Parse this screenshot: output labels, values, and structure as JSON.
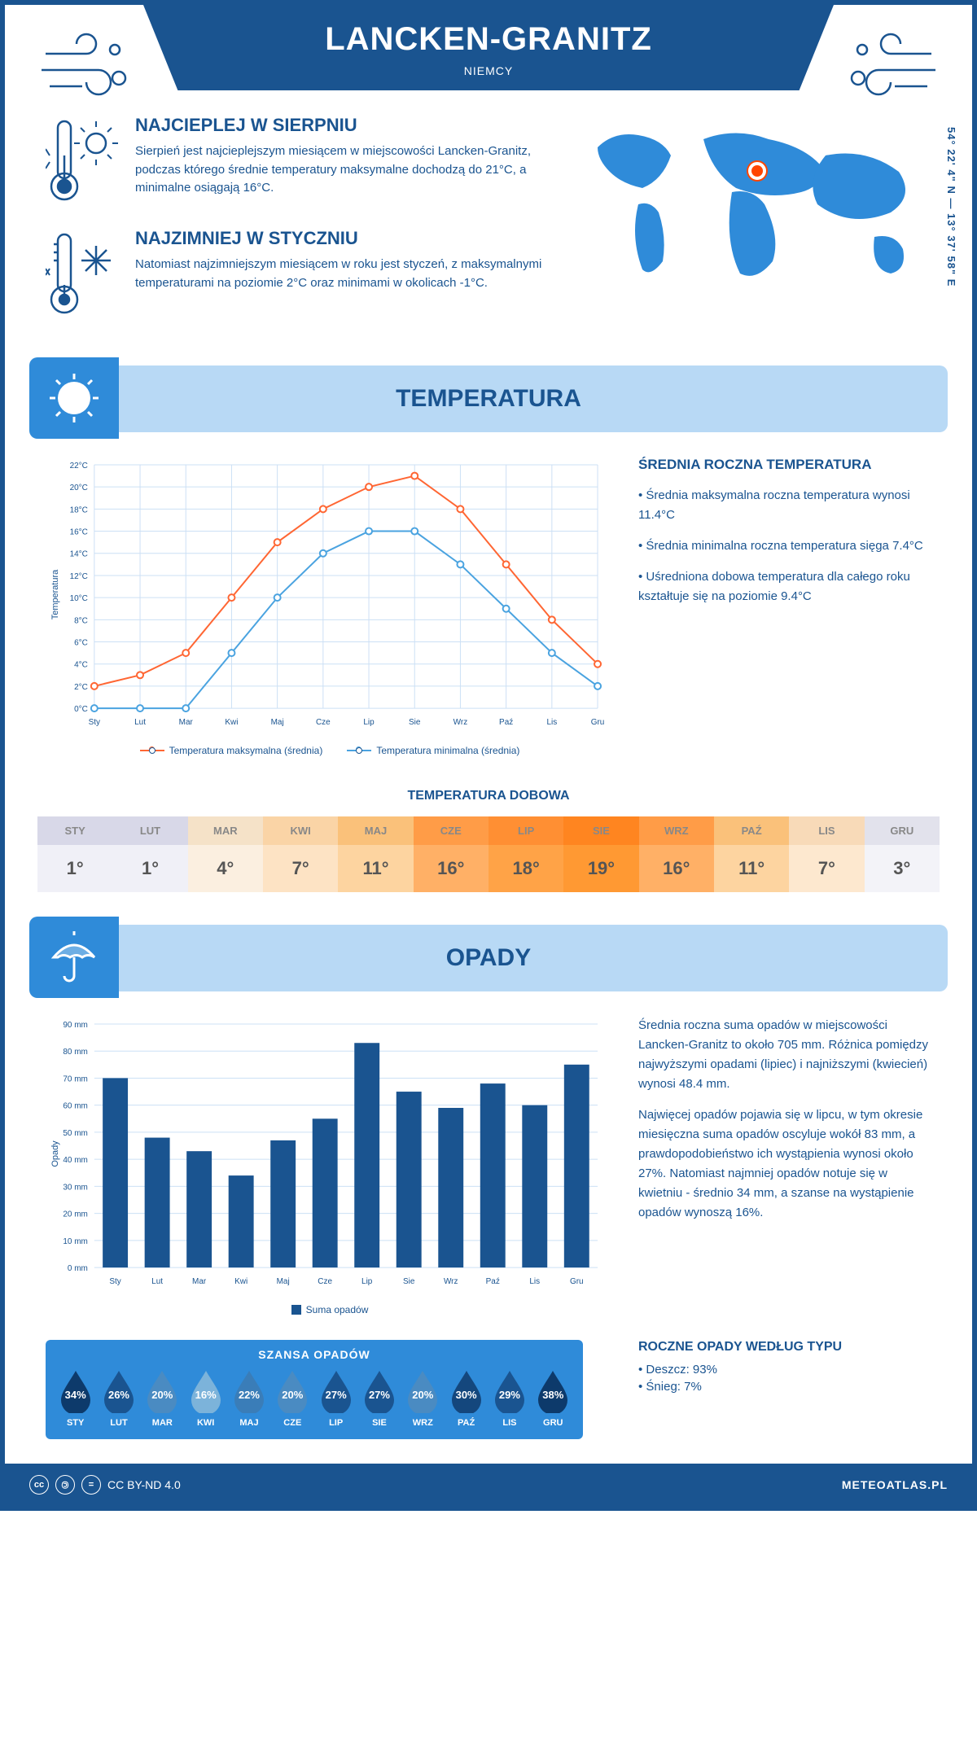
{
  "header": {
    "city": "LANCKEN-GRANITZ",
    "country": "NIEMCY",
    "coords": "54° 22' 4\" N — 13° 37' 58\" E"
  },
  "intro": {
    "warm": {
      "title": "NAJCIEPLEJ W SIERPNIU",
      "text": "Sierpień jest najcieplejszym miesiącem w miejscowości Lancken-Granitz, podczas którego średnie temperatury maksymalne dochodzą do 21°C, a minimalne osiągają 16°C."
    },
    "cold": {
      "title": "NAJZIMNIEJ W STYCZNIU",
      "text": "Natomiast najzimniejszym miesiącem w roku jest styczeń, z maksymalnymi temperaturami na poziomie 2°C oraz minimami w okolicach -1°C."
    }
  },
  "temp_section": {
    "title": "TEMPERATURA",
    "side_title": "ŚREDNIA ROCZNA TEMPERATURA",
    "bullets": [
      "• Średnia maksymalna roczna temperatura wynosi 11.4°C",
      "• Średnia minimalna roczna temperatura sięga 7.4°C",
      "• Uśredniona dobowa temperatura dla całego roku kształtuje się na poziomie 9.4°C"
    ],
    "chart": {
      "type": "line",
      "months": [
        "Sty",
        "Lut",
        "Mar",
        "Kwi",
        "Maj",
        "Cze",
        "Lip",
        "Sie",
        "Wrz",
        "Paź",
        "Lis",
        "Gru"
      ],
      "max_series": [
        2,
        3,
        5,
        10,
        15,
        18,
        20,
        21,
        18,
        13,
        8,
        4
      ],
      "min_series": [
        -1,
        0,
        0,
        5,
        10,
        14,
        16,
        16,
        13,
        9,
        5,
        2
      ],
      "max_color": "#ff6633",
      "min_color": "#4aa3e0",
      "grid_color": "#cce0f5",
      "ylim": [
        0,
        22
      ],
      "ytick_step": 2,
      "y_axis_title": "Temperatura",
      "legend_max": "Temperatura maksymalna (średnia)",
      "legend_min": "Temperatura minimalna (średnia)"
    },
    "daily": {
      "title": "TEMPERATURA DOBOWA",
      "months": [
        "STY",
        "LUT",
        "MAR",
        "KWI",
        "MAJ",
        "CZE",
        "LIP",
        "SIE",
        "WRZ",
        "PAŹ",
        "LIS",
        "GRU"
      ],
      "values": [
        "1°",
        "1°",
        "4°",
        "7°",
        "11°",
        "16°",
        "18°",
        "19°",
        "16°",
        "11°",
        "7°",
        "3°"
      ],
      "bg_colors": [
        "#f0f0f7",
        "#f0f0f7",
        "#fbefe0",
        "#fde3c4",
        "#fdd4a0",
        "#ffb066",
        "#ffa347",
        "#ff9933",
        "#ffb066",
        "#fdd4a0",
        "#fde8cf",
        "#f3f3f8"
      ],
      "header_colors": [
        "#d8d8e8",
        "#d8d8e8",
        "#f5e2c8",
        "#fad4a6",
        "#fac17a",
        "#ff9c47",
        "#ff8f33",
        "#ff8520",
        "#ff9c47",
        "#fac17a",
        "#f8dab8",
        "#e2e2ec"
      ]
    }
  },
  "precip_section": {
    "title": "OPADY",
    "side_p1": "Średnia roczna suma opadów w miejscowości Lancken-Granitz to około 705 mm. Różnica pomiędzy najwyższymi opadami (lipiec) i najniższymi (kwiecień) wynosi 48.4 mm.",
    "side_p2": "Najwięcej opadów pojawia się w lipcu, w tym okresie miesięczna suma opadów oscyluje wokół 83 mm, a prawdopodobieństwo ich wystąpienia wynosi około 27%. Natomiast najmniej opadów notuje się w kwietniu - średnio 34 mm, a szanse na wystąpienie opadów wynoszą 16%.",
    "chart": {
      "type": "bar",
      "months": [
        "Sty",
        "Lut",
        "Mar",
        "Kwi",
        "Maj",
        "Cze",
        "Lip",
        "Sie",
        "Wrz",
        "Paź",
        "Lis",
        "Gru"
      ],
      "values": [
        70,
        48,
        43,
        34,
        47,
        55,
        83,
        65,
        59,
        68,
        60,
        75
      ],
      "bar_color": "#1a5490",
      "grid_color": "#cce0f5",
      "ylim": [
        0,
        90
      ],
      "ytick_step": 10,
      "y_axis_title": "Opady",
      "legend": "Suma opadów"
    },
    "chance": {
      "title": "SZANSA OPADÓW",
      "months": [
        "STY",
        "LUT",
        "MAR",
        "KWI",
        "MAJ",
        "CZE",
        "LIP",
        "SIE",
        "WRZ",
        "PAŹ",
        "LIS",
        "GRU"
      ],
      "values": [
        "34%",
        "26%",
        "20%",
        "16%",
        "22%",
        "20%",
        "27%",
        "27%",
        "20%",
        "30%",
        "29%",
        "38%"
      ],
      "drop_colors": [
        "#0d3a6b",
        "#1a5490",
        "#4a8bc2",
        "#7cb3da",
        "#3a7db8",
        "#4a8bc2",
        "#1a5490",
        "#1a5490",
        "#4a8bc2",
        "#14477d",
        "#1a5490",
        "#0d3a6b"
      ]
    },
    "type": {
      "title": "ROCZNE OPADY WEDŁUG TYPU",
      "rain": "• Deszcz: 93%",
      "snow": "• Śnieg: 7%"
    }
  },
  "footer": {
    "license": "CC BY-ND 4.0",
    "site": "METEOATLAS.PL"
  }
}
